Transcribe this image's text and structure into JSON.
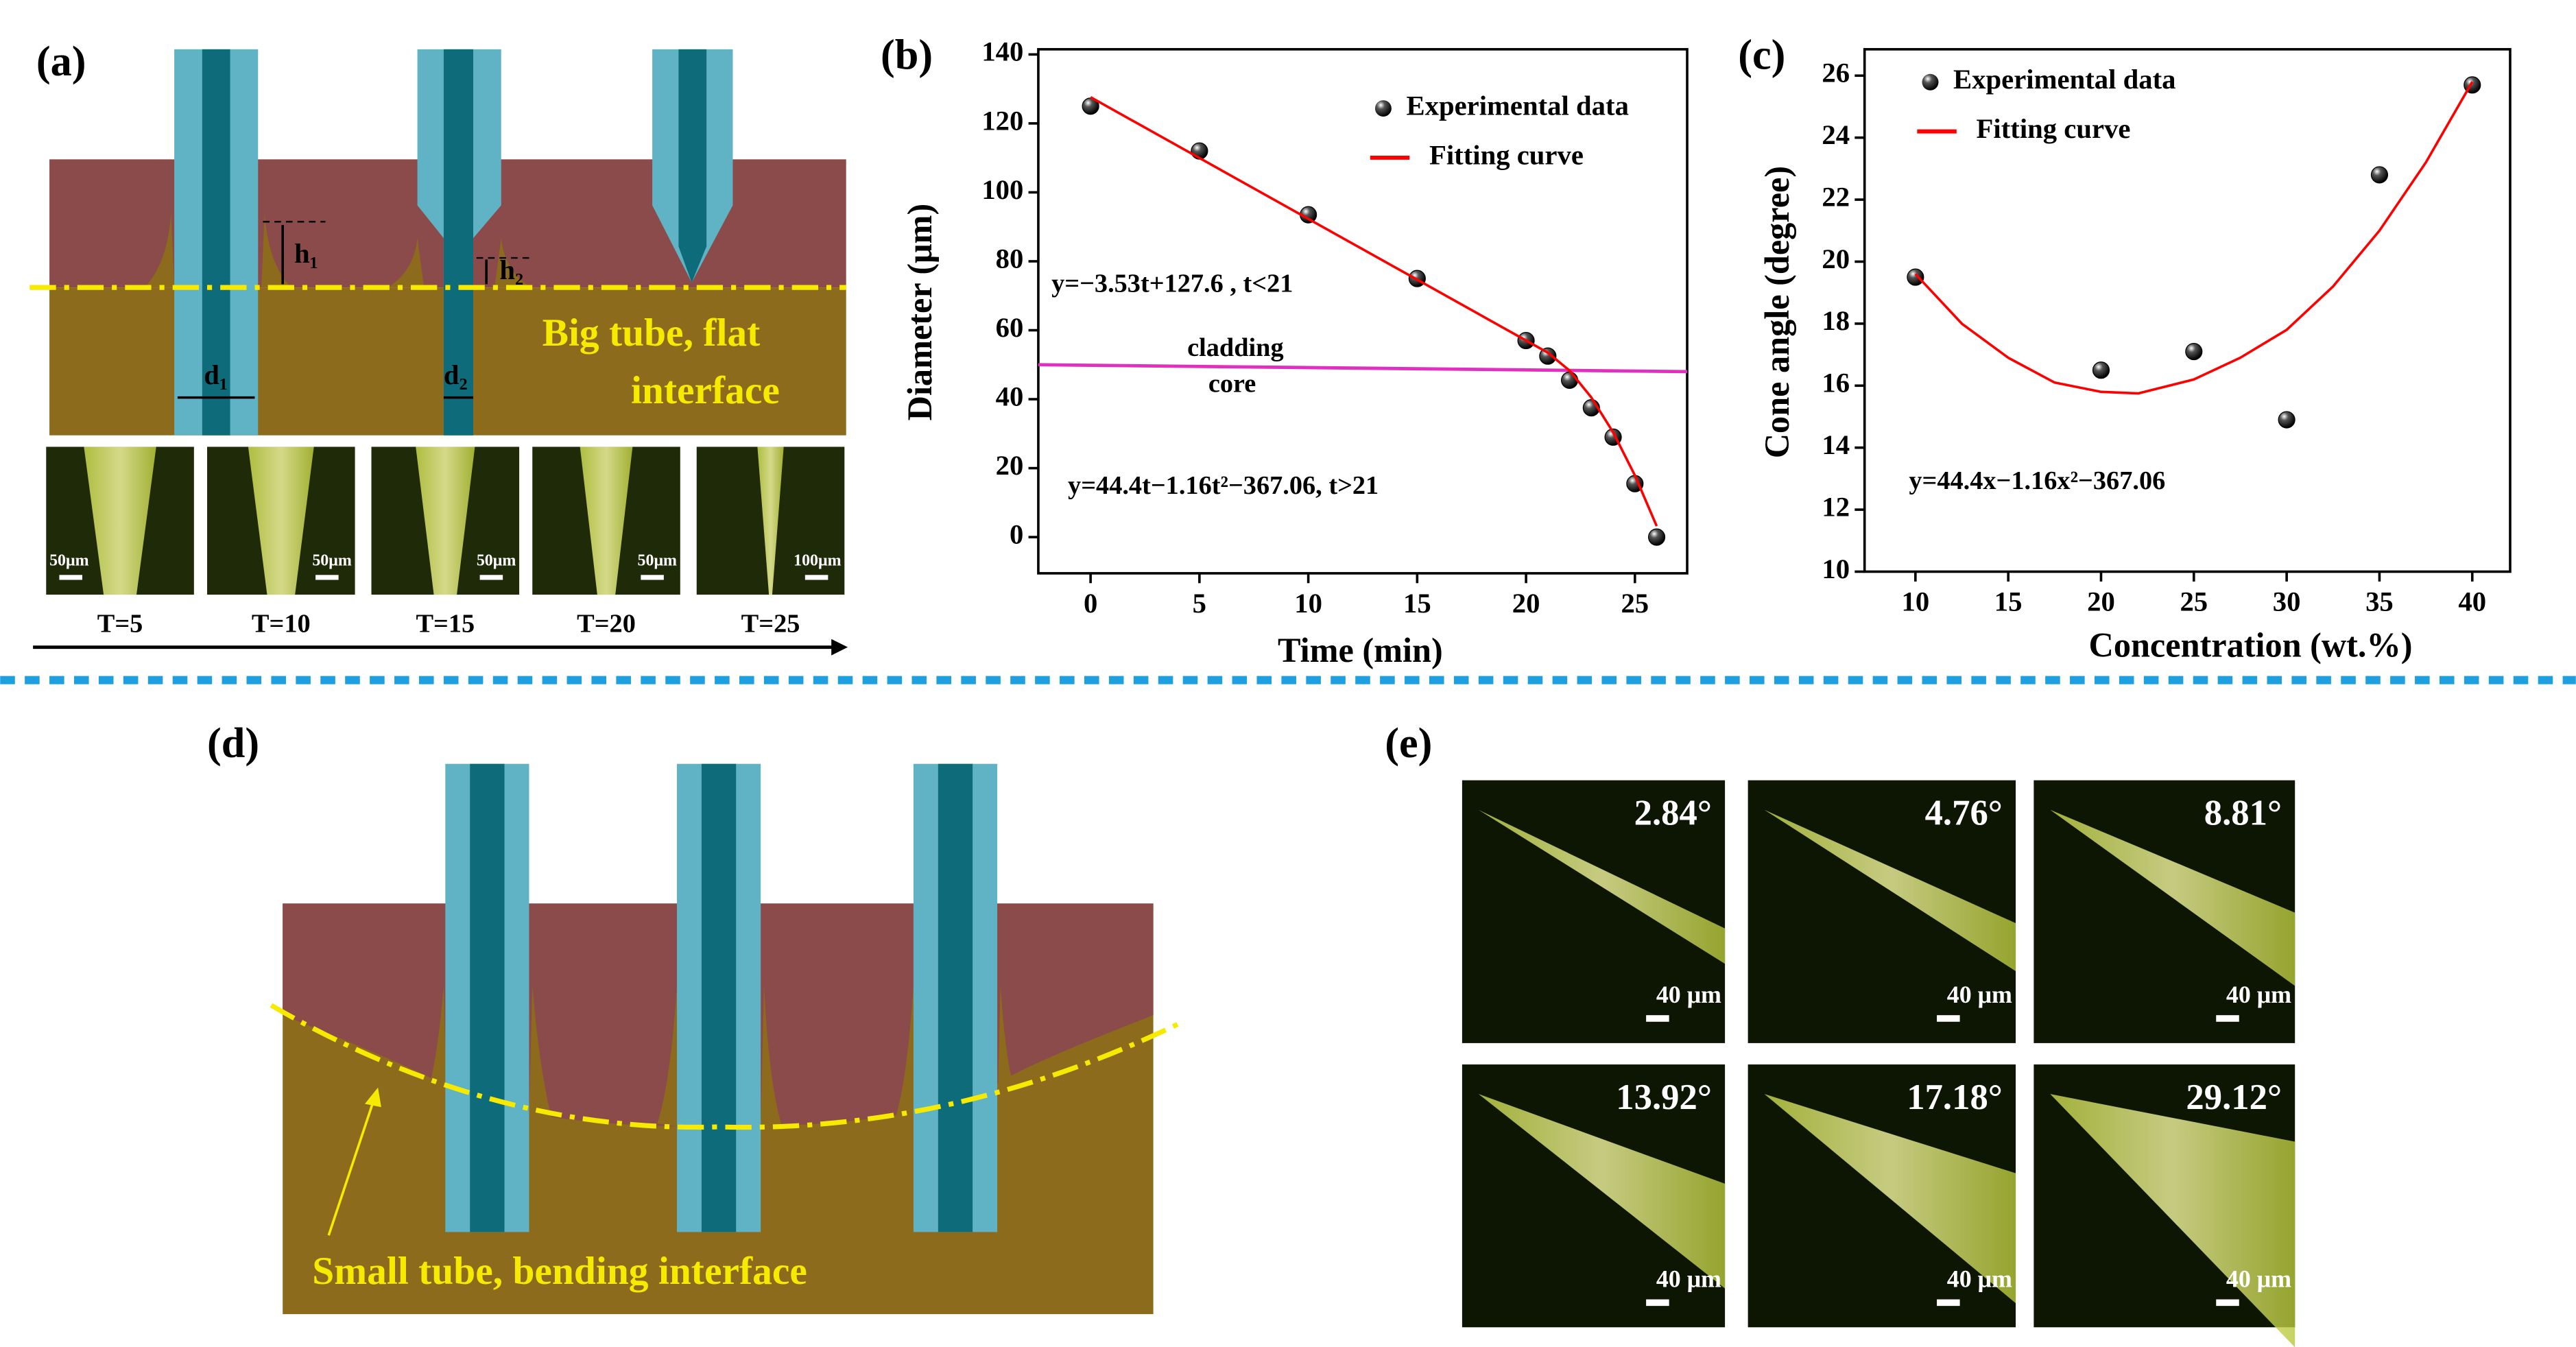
{
  "panel_labels": [
    "(a)",
    "(b)",
    "(c)",
    "(d)",
    "(e)"
  ],
  "panel_a": {
    "labels": [
      "h₁",
      "h₂",
      "d₁",
      "d₂"
    ],
    "interface_label": [
      "Big tube, flat",
      "interface"
    ],
    "micrographs": [
      {
        "scale": "50μm",
        "time": "T=5"
      },
      {
        "scale": "50μm",
        "time": "T=10"
      },
      {
        "scale": "50μm",
        "time": "T=15"
      },
      {
        "scale": "50μm",
        "time": "T=20"
      },
      {
        "scale": "100μm",
        "time": "T=25"
      }
    ]
  },
  "chart_data": [
    {
      "type": "scatter",
      "xlabel": "Time (min)",
      "ylabel": "Diameter (μm)",
      "xlim": [
        -2.4,
        27.4
      ],
      "ylim": [
        -10.5,
        141.5
      ],
      "xticks": [
        0,
        5,
        10,
        15,
        20,
        25
      ],
      "yticks": [
        0,
        20,
        40,
        60,
        80,
        100,
        120,
        140
      ],
      "legend": "upper right",
      "series": [
        {
          "name": "Experimental data",
          "color": "#000000",
          "x": [
            0,
            5,
            10,
            15,
            20,
            21,
            22,
            23,
            24,
            25,
            26
          ],
          "values": [
            125,
            112,
            93.5,
            75,
            57,
            52.5,
            45.5,
            37.5,
            29,
            15.5,
            0
          ]
        },
        {
          "name": "Fitting curve",
          "type": "line",
          "color": "#ff0000",
          "x": [
            0,
            21,
            22,
            23,
            24,
            25,
            26
          ],
          "values": [
            127.6,
            53.5,
            48.3,
            40.5,
            30.4,
            17.9,
            3.2
          ]
        }
      ],
      "reference_line": {
        "x": [
          -2.4,
          27.4
        ],
        "values": [
          50,
          48
        ],
        "color": "#e030c0",
        "labels": [
          "cladding",
          "core"
        ]
      },
      "annotations": [
        "y=−3.53t+127.6 , t<21",
        "y=44.4t−1.16t²−367.06, t>21"
      ]
    },
    {
      "type": "scatter",
      "xlabel": "Concentration (wt.%)",
      "ylabel": "Cone angle  (degree)",
      "xlim": [
        7.26,
        42.04
      ],
      "ylim": [
        10,
        26.85
      ],
      "xticks": [
        10,
        15,
        20,
        25,
        30,
        35,
        40
      ],
      "yticks": [
        10,
        12,
        14,
        16,
        18,
        20,
        22,
        24,
        26
      ],
      "legend": "upper left",
      "series": [
        {
          "name": "Experimental data",
          "color": "#000000",
          "x": [
            10,
            20,
            25,
            30,
            35,
            40
          ],
          "values": [
            19.5,
            16.5,
            17.1,
            14.9,
            22.8,
            25.7
          ]
        },
        {
          "name": "Fitting curve",
          "type": "line",
          "color": "#ff0000",
          "x": [
            10,
            12.5,
            15,
            17.5,
            20,
            22,
            25,
            27.5,
            30,
            32.5,
            35,
            37.5,
            40
          ],
          "values": [
            19.6,
            18.0,
            16.9,
            16.1,
            15.8,
            15.75,
            16.2,
            16.9,
            17.8,
            19.2,
            21.0,
            23.2,
            25.8
          ]
        }
      ],
      "annotations": [
        "y=44.4x−1.16x²−367.06"
      ]
    }
  ],
  "panel_d": {
    "interface_label": "Small tube, bending interface"
  },
  "panel_e": {
    "images": [
      {
        "angle": "2.84°",
        "scale": "40 μm"
      },
      {
        "angle": "4.76°",
        "scale": "40 μm"
      },
      {
        "angle": "8.81°",
        "scale": "40 μm"
      },
      {
        "angle": "13.92°",
        "scale": "40 μm"
      },
      {
        "angle": "17.18°",
        "scale": "40 μm"
      },
      {
        "angle": "29.12°",
        "scale": "40 μm"
      }
    ]
  }
}
